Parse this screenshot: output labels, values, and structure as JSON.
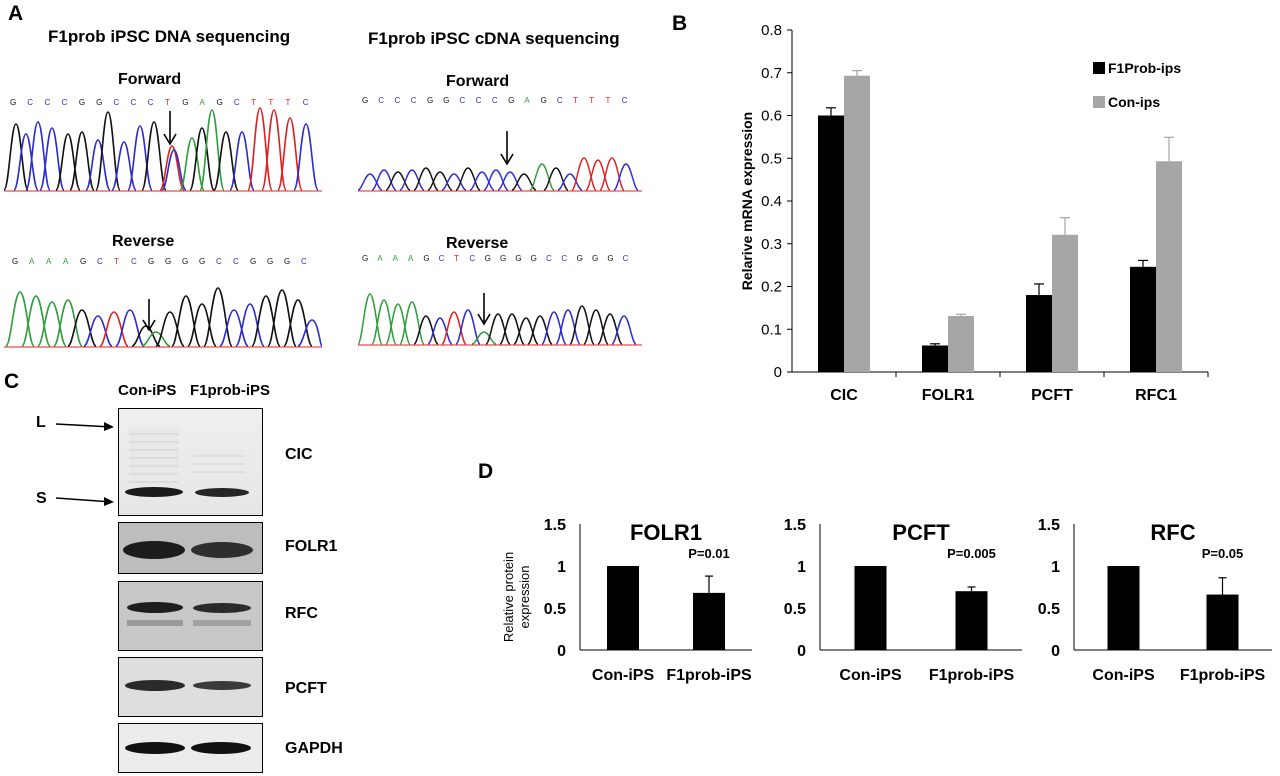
{
  "panels": {
    "a": "A",
    "b": "B",
    "c": "C",
    "d": "D"
  },
  "seqA": {
    "dna_title": "F1prob iPSC DNA sequencing",
    "cdna_title": "F1prob iPSC cDNA sequencing",
    "forward": "Forward",
    "reverse": "Reverse",
    "dna_forward_seq": [
      "G",
      "C",
      "C",
      "C",
      "G",
      "G",
      "C",
      "C",
      "C",
      "T",
      "G",
      "A",
      "G",
      "C",
      "T",
      "T",
      "T",
      "C"
    ],
    "dna_reverse_seq": [
      "G",
      "A",
      "A",
      "A",
      "G",
      "C",
      "T",
      "C",
      "G",
      "G",
      "G",
      "G",
      "C",
      "C",
      "G",
      "G",
      "G",
      "C"
    ],
    "cdna_forward_seq": [
      "G",
      "C",
      "C",
      "C",
      "G",
      "G",
      "C",
      "C",
      "C",
      "G",
      "A",
      "G",
      "C",
      "T",
      "T",
      "T",
      "C"
    ],
    "cdna_reverse_seq": [
      "G",
      "A",
      "A",
      "A",
      "G",
      "C",
      "T",
      "C",
      "G",
      "G",
      "G",
      "G",
      "C",
      "C",
      "G",
      "G",
      "G",
      "C"
    ]
  },
  "colors": {
    "black_bar": "#000000",
    "gray_bar": "#a6a6a6",
    "A": "#2e9e3a",
    "C": "#2b2bd0",
    "G": "#111111",
    "T": "#e02020"
  },
  "chart_data": [
    {
      "type": "bar",
      "panel": "B",
      "categories": [
        "CIC",
        "FOLR1",
        "PCFT",
        "RFC1"
      ],
      "series": [
        {
          "name": "F1Prob-ips",
          "values": [
            0.6,
            0.062,
            0.18,
            0.246
          ],
          "errors": [
            0.018,
            0.004,
            0.026,
            0.015
          ]
        },
        {
          "name": "Con-ips",
          "values": [
            0.693,
            0.131,
            0.321,
            0.493
          ],
          "errors": [
            0.012,
            0.004,
            0.04,
            0.056
          ]
        }
      ],
      "ylabel": "Relarive mRNA expression",
      "ylim": [
        0,
        0.8
      ],
      "yticks": [
        "0",
        "0.1",
        "0.2",
        "0.3",
        "0.4",
        "0.5",
        "0.6",
        "0.7",
        "0.8"
      ],
      "legend": "top-right",
      "grid": false
    },
    {
      "type": "bar",
      "panel": "D",
      "title": "FOLR1",
      "categories": [
        "Con-iPS",
        "F1prob-iPS"
      ],
      "values": [
        1,
        0.68
      ],
      "errors": [
        0,
        0.2
      ],
      "annotation": "P=0.01",
      "ylabel": "Relative protein expression",
      "ylim": [
        0,
        1.5
      ],
      "yticks": [
        "0",
        "0.5",
        "1",
        "1.5"
      ]
    },
    {
      "type": "bar",
      "panel": "D",
      "title": "PCFT",
      "categories": [
        "Con-iPS",
        "F1prob-iPS"
      ],
      "values": [
        1,
        0.7
      ],
      "errors": [
        0,
        0.05
      ],
      "annotation": "P=0.005",
      "ylim": [
        0,
        1.5
      ],
      "yticks": [
        "0",
        "0.5",
        "1",
        "1.5"
      ]
    },
    {
      "type": "bar",
      "panel": "D",
      "title": "RFC",
      "categories": [
        "Con-iPS",
        "F1prob-iPS"
      ],
      "values": [
        1,
        0.66
      ],
      "errors": [
        0,
        0.2
      ],
      "annotation": "P=0.05",
      "ylim": [
        0,
        1.5
      ],
      "yticks": [
        "0",
        "0.5",
        "1",
        "1.5"
      ]
    }
  ],
  "blot": {
    "lanes": [
      "Con-iPS",
      "F1prob-iPS"
    ],
    "proteins": [
      "CIC",
      "FOLR1",
      "RFC",
      "PCFT",
      "GAPDH"
    ],
    "markers": [
      "L",
      "S"
    ]
  }
}
